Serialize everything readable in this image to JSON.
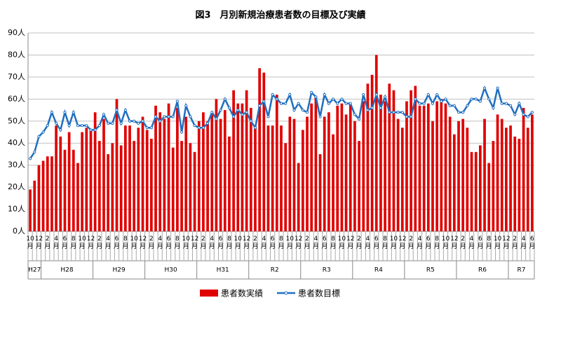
{
  "chart_data": {
    "type": "bar_line",
    "title": "図3　月別新規治療患者数の目標及び実績",
    "categories": [
      "10月",
      null,
      "12月",
      null,
      "2月",
      null,
      "4月",
      null,
      "6月",
      null,
      "8月",
      null,
      "10月",
      null,
      "12月",
      null,
      "2月",
      null,
      "4月",
      null,
      "6月",
      null,
      "8月",
      null,
      "10月",
      null,
      "12月",
      null,
      "2月",
      null,
      "4月",
      null,
      "6月",
      null,
      "8月",
      null,
      "10月",
      null,
      "12月",
      null,
      "2月",
      null,
      "4月",
      null,
      "6月",
      null,
      "8月",
      null,
      "10月",
      null,
      "12月",
      null,
      "2月",
      null,
      "4月",
      null,
      "6月",
      null,
      "8月",
      null,
      "10月",
      null,
      "12月",
      null,
      "2月",
      null,
      "4月",
      null,
      "6月",
      null,
      "8月",
      null,
      "10月",
      null,
      "12月",
      null,
      "2月",
      null,
      "4月",
      null,
      "6月",
      null,
      "8月",
      null,
      "10月",
      null,
      "12月",
      null,
      "2月",
      null,
      "4月",
      null,
      "6月",
      null,
      "8月",
      null,
      "10月",
      null,
      "12月",
      null,
      "2月",
      null,
      "4月",
      null,
      "6月",
      null,
      "8月",
      null,
      "10月",
      null,
      "12月",
      null,
      "2月",
      null,
      "4月",
      null,
      "6月"
    ],
    "year_groups": [
      {
        "label": "H27",
        "months": 3
      },
      {
        "label": "H28",
        "months": 12
      },
      {
        "label": "H29",
        "months": 12
      },
      {
        "label": "H30",
        "months": 12
      },
      {
        "label": "H31",
        "months": 12
      },
      {
        "label": "R2",
        "months": 12
      },
      {
        "label": "R3",
        "months": 12
      },
      {
        "label": "R4",
        "months": 12
      },
      {
        "label": "R5",
        "months": 12
      },
      {
        "label": "R6",
        "months": 12
      },
      {
        "label": "R7",
        "months": 6
      }
    ],
    "series": [
      {
        "name": "患者数実績",
        "kind": "bar",
        "color": "#e00000",
        "values": [
          19,
          23,
          30,
          32,
          34,
          34,
          48,
          43,
          37,
          45,
          37,
          31,
          45,
          47,
          46,
          54,
          41,
          51,
          35,
          40,
          60,
          39,
          48,
          48,
          41,
          47,
          52,
          46,
          42,
          57,
          54,
          51,
          58,
          38,
          56,
          41,
          52,
          40,
          36,
          50,
          54,
          50,
          53,
          60,
          51,
          55,
          43,
          64,
          58,
          58,
          64,
          56,
          47,
          74,
          72,
          48,
          48,
          62,
          48,
          40,
          52,
          51,
          31,
          46,
          52,
          58,
          61,
          35,
          52,
          54,
          44,
          57,
          58,
          53,
          58,
          50,
          41,
          59,
          67,
          71,
          80,
          62,
          59,
          67,
          64,
          51,
          47,
          59,
          64,
          66,
          57,
          57,
          58,
          50,
          59,
          60,
          58,
          52,
          44,
          50,
          51,
          47,
          36,
          36,
          39,
          51,
          31,
          41,
          53,
          51,
          47,
          48,
          43,
          42,
          56,
          47,
          53
        ]
      },
      {
        "name": "患者数目標",
        "kind": "line",
        "color": "#1f6fc0",
        "values": [
          33,
          36,
          43,
          45,
          48,
          54,
          49,
          46,
          54,
          48,
          54,
          48,
          48,
          48,
          46,
          46,
          48,
          53,
          49,
          49,
          55,
          49,
          55,
          50,
          50,
          49,
          50,
          47,
          47,
          52,
          50,
          52,
          52,
          52,
          59,
          45,
          57,
          52,
          48,
          47,
          47,
          49,
          54,
          51,
          55,
          60,
          56,
          52,
          55,
          53,
          54,
          50,
          47,
          57,
          59,
          52,
          62,
          60,
          58,
          58,
          62,
          55,
          58,
          55,
          54,
          63,
          61,
          52,
          62,
          58,
          60,
          58,
          60,
          58,
          58,
          53,
          51,
          62,
          55,
          56,
          62,
          56,
          61,
          54,
          54,
          54,
          54,
          52,
          52,
          60,
          58,
          58,
          62,
          58,
          62,
          59,
          60,
          57,
          57,
          54,
          54,
          57,
          60,
          60,
          59,
          65,
          60,
          56,
          65,
          58,
          58,
          57,
          53,
          58,
          53,
          52,
          54
        ]
      }
    ],
    "ylim": [
      0,
      90
    ],
    "yticks": [
      {
        "value": 0,
        "label": "0人"
      },
      {
        "value": 10,
        "label": "10人"
      },
      {
        "value": 20,
        "label": "20人"
      },
      {
        "value": 30,
        "label": "30人"
      },
      {
        "value": 40,
        "label": "40人"
      },
      {
        "value": 50,
        "label": "50人"
      },
      {
        "value": 60,
        "label": "60人"
      },
      {
        "value": 70,
        "label": "70人"
      },
      {
        "value": 80,
        "label": "80人"
      },
      {
        "value": 90,
        "label": "90人"
      }
    ],
    "grid": true
  }
}
